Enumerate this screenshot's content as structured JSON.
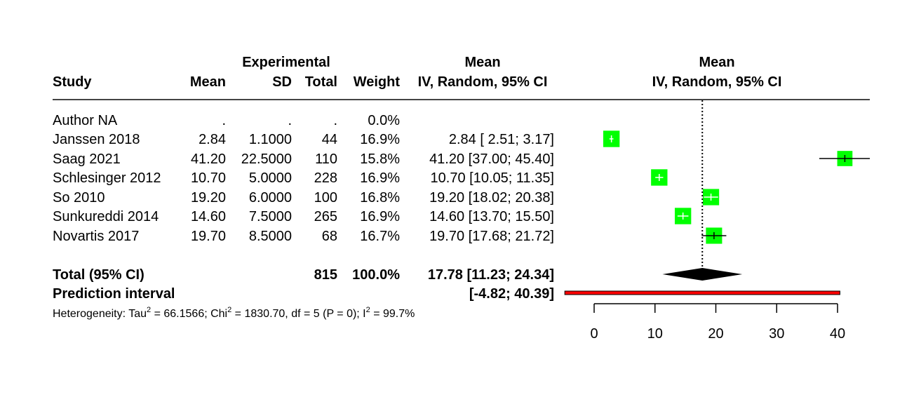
{
  "chart_data": {
    "type": "forest",
    "headers": {
      "study": "Study",
      "group": "Experimental",
      "mean": "Mean",
      "sd": "SD",
      "total": "Total",
      "weight": "Weight",
      "effect_top": "Mean",
      "effect_bottom": "IV, Random, 95% CI",
      "plot_top": "Mean",
      "plot_bottom": "IV, Random, 95% CI"
    },
    "studies": [
      {
        "name": "Author NA",
        "mean": ".",
        "sd": ".",
        "total": ".",
        "weight": "0.0%",
        "ci_text": "",
        "est": null,
        "lo": null,
        "hi": null,
        "w": 0
      },
      {
        "name": "Janssen 2018",
        "mean": "2.84",
        "sd": "1.1000",
        "total": "44",
        "weight": "16.9%",
        "ci_text": "2.84 [ 2.51;  3.17]",
        "est": 2.84,
        "lo": 2.51,
        "hi": 3.17,
        "w": 16.9
      },
      {
        "name": "Saag 2021",
        "mean": "41.20",
        "sd": "22.5000",
        "total": "110",
        "weight": "15.8%",
        "ci_text": "41.20 [37.00; 45.40]",
        "est": 41.2,
        "lo": 37.0,
        "hi": 45.4,
        "w": 15.8
      },
      {
        "name": "Schlesinger 2012",
        "mean": "10.70",
        "sd": "5.0000",
        "total": "228",
        "weight": "16.9%",
        "ci_text": "10.70 [10.05; 11.35]",
        "est": 10.7,
        "lo": 10.05,
        "hi": 11.35,
        "w": 16.9
      },
      {
        "name": "So 2010",
        "mean": "19.20",
        "sd": "6.0000",
        "total": "100",
        "weight": "16.8%",
        "ci_text": "19.20 [18.02; 20.38]",
        "est": 19.2,
        "lo": 18.02,
        "hi": 20.38,
        "w": 16.8
      },
      {
        "name": "Sunkureddi 2014",
        "mean": "14.60",
        "sd": "7.5000",
        "total": "265",
        "weight": "16.9%",
        "ci_text": "14.60 [13.70; 15.50]",
        "est": 14.6,
        "lo": 13.7,
        "hi": 15.5,
        "w": 16.9
      },
      {
        "name": "Novartis 2017",
        "mean": "19.70",
        "sd": "8.5000",
        "total": "68",
        "weight": "16.7%",
        "ci_text": "19.70 [17.68; 21.72]",
        "est": 19.7,
        "lo": 17.68,
        "hi": 21.72,
        "w": 16.7
      }
    ],
    "total": {
      "label": "Total (95% CI)",
      "total": "815",
      "weight": "100.0%",
      "ci_text": "17.78 [11.23; 24.34]",
      "est": 17.78,
      "lo": 11.23,
      "hi": 24.34
    },
    "prediction": {
      "label": "Prediction interval",
      "ci_text": "[-4.82; 40.39]",
      "lo": -4.82,
      "hi": 40.39
    },
    "heterogeneity": {
      "p1": "Heterogeneity: Tau",
      "p2": " = 66.1566; Chi",
      "p3": " = 1830.70, df = 5 (P = 0); I",
      "p4": " = 99.7%",
      "sup": "2"
    },
    "xaxis": {
      "range": [
        0,
        40
      ],
      "ticks": [
        0,
        10,
        20,
        30,
        40
      ],
      "tick_labels": [
        "0",
        "10",
        "20",
        "30",
        "40"
      ]
    },
    "colors": {
      "square": "#00ff00",
      "prediction": "#ff0000",
      "diamond": "#000000"
    }
  }
}
